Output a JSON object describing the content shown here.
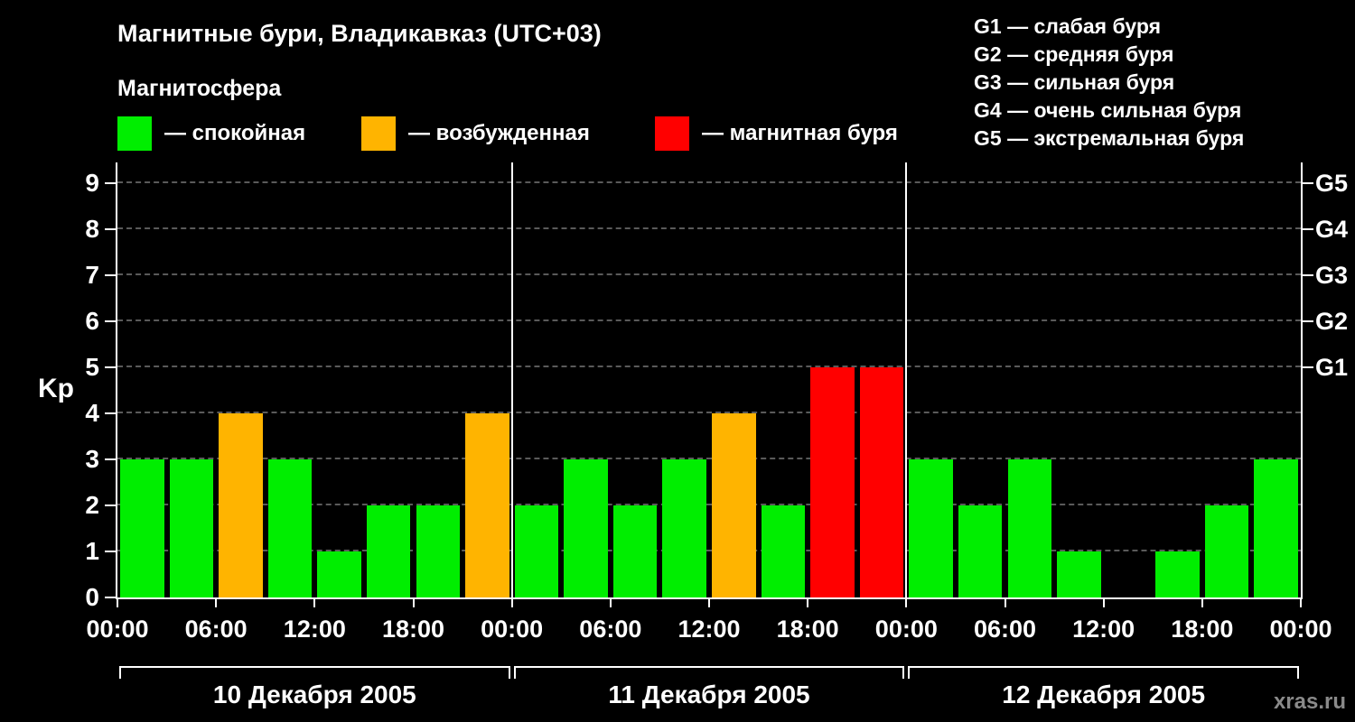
{
  "title": "Магнитные бури, Владикавказ (UTC+03)",
  "subtitle": "Магнитосфера",
  "ylabel": "Kp",
  "watermark": "xras.ru",
  "legend": [
    {
      "label": "— спокойная",
      "color": "#00ee00"
    },
    {
      "label": "— возбужденная",
      "color": "#ffb400"
    },
    {
      "label": "— магнитная буря",
      "color": "#ff0000"
    }
  ],
  "storm_scale": [
    "G1 — слабая буря",
    "G2 — средняя буря",
    "G3 — сильная буря",
    "G4 — очень сильная буря",
    "G5 — экстремальная буря"
  ],
  "chart_data": {
    "type": "bar",
    "title": "Магнитные бури, Владикавказ (UTC+03)",
    "ylabel": "Kp",
    "ylim": [
      0,
      9.45
    ],
    "grid": "dashed-horizontal",
    "yticks": [
      0,
      1,
      2,
      3,
      4,
      5,
      6,
      7,
      8,
      9
    ],
    "right_ticks": [
      {
        "label": "G1",
        "value": 5
      },
      {
        "label": "G2",
        "value": 6
      },
      {
        "label": "G3",
        "value": 7
      },
      {
        "label": "G4",
        "value": 8
      },
      {
        "label": "G5",
        "value": 9
      }
    ],
    "x_tick_labels": [
      "00:00",
      "06:00",
      "12:00",
      "18:00",
      "00:00",
      "06:00",
      "12:00",
      "18:00",
      "00:00",
      "06:00",
      "12:00",
      "18:00",
      "00:00"
    ],
    "interval_hours": 3,
    "days": [
      {
        "date": "10 Декабря 2005",
        "values": [
          3,
          3,
          4,
          3,
          1,
          2,
          2,
          4
        ]
      },
      {
        "date": "11 Декабря 2005",
        "values": [
          2,
          3,
          2,
          3,
          4,
          2,
          5,
          5
        ]
      },
      {
        "date": "12 Декабря 2005",
        "values": [
          3,
          2,
          3,
          1,
          0,
          1,
          2,
          3
        ]
      }
    ],
    "color_rules": {
      "quiet_max": 3,
      "excited_max": 4
    },
    "colors": {
      "quiet": "#00ee00",
      "excited": "#ffb400",
      "storm": "#ff0000"
    },
    "gridline_color": "#5a5a5a"
  }
}
